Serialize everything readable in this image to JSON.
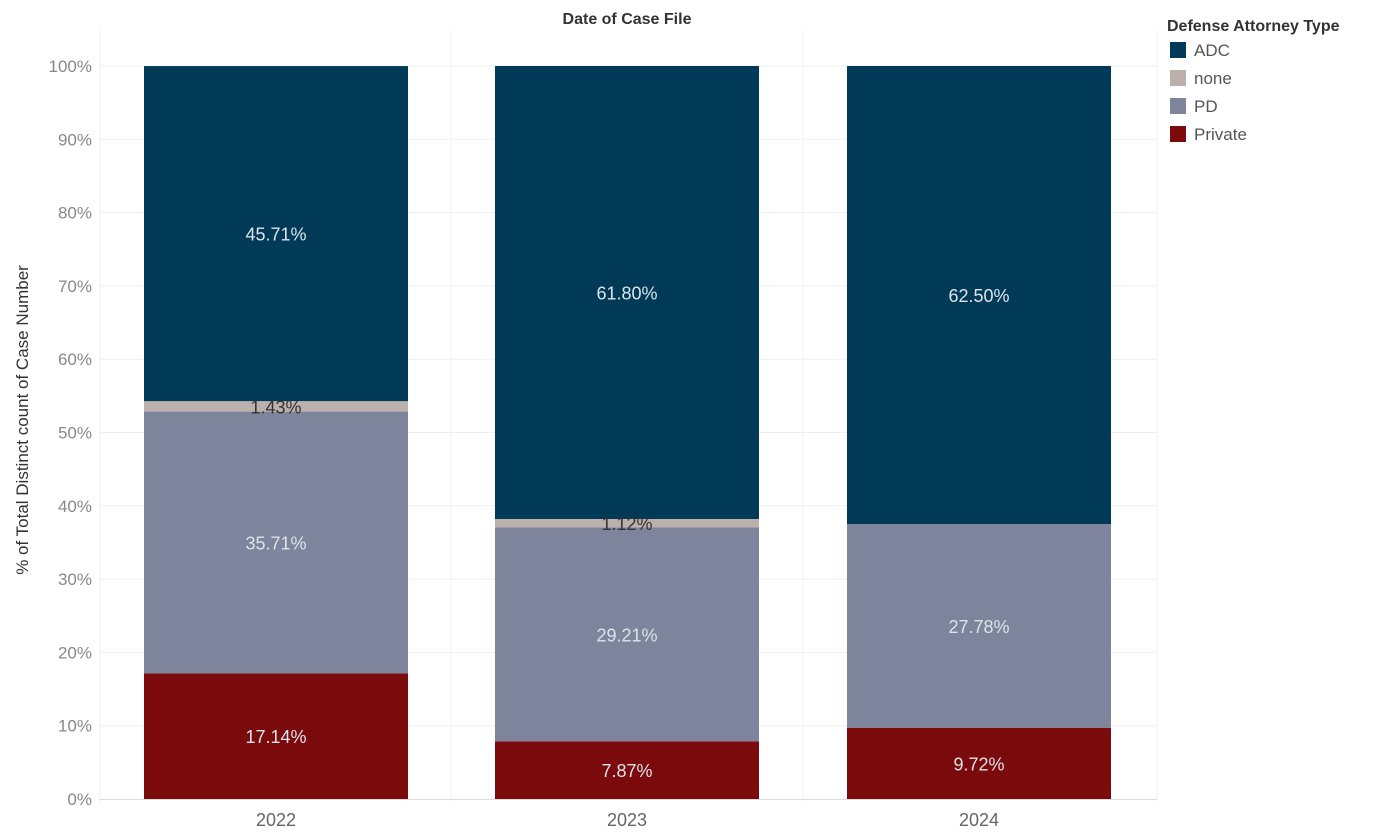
{
  "chart_data": {
    "type": "bar",
    "stacked": true,
    "title": "Date of Case File",
    "xlabel": "",
    "ylabel": "% of Total Distinct count of Case Number",
    "categories": [
      "2022",
      "2023",
      "2024"
    ],
    "ylim": [
      0,
      100
    ],
    "yticks": [
      "0%",
      "10%",
      "20%",
      "30%",
      "40%",
      "50%",
      "60%",
      "70%",
      "80%",
      "90%",
      "100%"
    ],
    "grid": true,
    "legend": {
      "title": "Defense Attorney Type",
      "placement": "top-right"
    },
    "series": [
      {
        "name": "Private",
        "color": "#7a0a0c",
        "values": [
          17.14,
          7.87,
          9.72
        ],
        "labels": [
          "17.14%",
          "7.87%",
          "9.72%"
        ]
      },
      {
        "name": "PD",
        "color": "#7e849c",
        "values": [
          35.71,
          29.21,
          27.78
        ],
        "labels": [
          "35.71%",
          "29.21%",
          "27.78%"
        ]
      },
      {
        "name": "none",
        "color": "#bcb0ad",
        "values": [
          1.43,
          1.12,
          0
        ],
        "labels": [
          "1.43%",
          "1.12%",
          ""
        ]
      },
      {
        "name": "ADC",
        "color": "#013a57",
        "values": [
          45.71,
          61.8,
          62.5
        ],
        "labels": [
          "45.71%",
          "61.80%",
          "62.50%"
        ]
      }
    ],
    "legend_order": [
      "ADC",
      "none",
      "PD",
      "Private"
    ]
  }
}
